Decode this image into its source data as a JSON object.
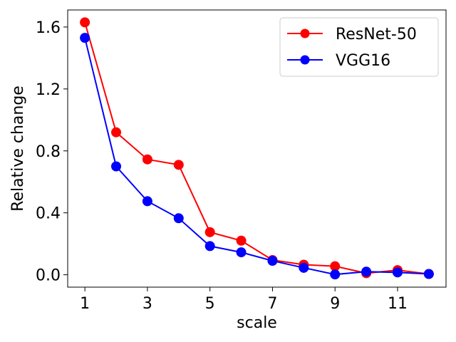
{
  "chart_data": {
    "type": "line",
    "title": "",
    "xlabel": "scale",
    "ylabel": "Relative change",
    "x": [
      1,
      2,
      3,
      4,
      5,
      6,
      7,
      8,
      9,
      10,
      11,
      12
    ],
    "xlim": [
      0.45,
      12.55
    ],
    "ylim": [
      -0.08,
      1.71
    ],
    "xticks": [
      1,
      3,
      5,
      7,
      9,
      11
    ],
    "xtick_labels": [
      "1",
      "3",
      "5",
      "7",
      "9",
      "11"
    ],
    "yticks": [
      0.0,
      0.4,
      0.8,
      1.2,
      1.6
    ],
    "ytick_labels": [
      "0.0",
      "0.4",
      "0.8",
      "1.2",
      "1.6"
    ],
    "grid": false,
    "legend_position": "top-right",
    "series": [
      {
        "name": "ResNet-50",
        "color": "#ff0000",
        "marker": "circle",
        "values": [
          1.63,
          0.92,
          0.745,
          0.71,
          0.275,
          0.22,
          0.095,
          0.065,
          0.055,
          0.01,
          0.03,
          0.005
        ]
      },
      {
        "name": "VGG16",
        "color": "#0000ff",
        "marker": "circle",
        "values": [
          1.53,
          0.7,
          0.475,
          0.365,
          0.185,
          0.145,
          0.09,
          0.045,
          0.002,
          0.02,
          0.015,
          0.005
        ]
      }
    ]
  }
}
